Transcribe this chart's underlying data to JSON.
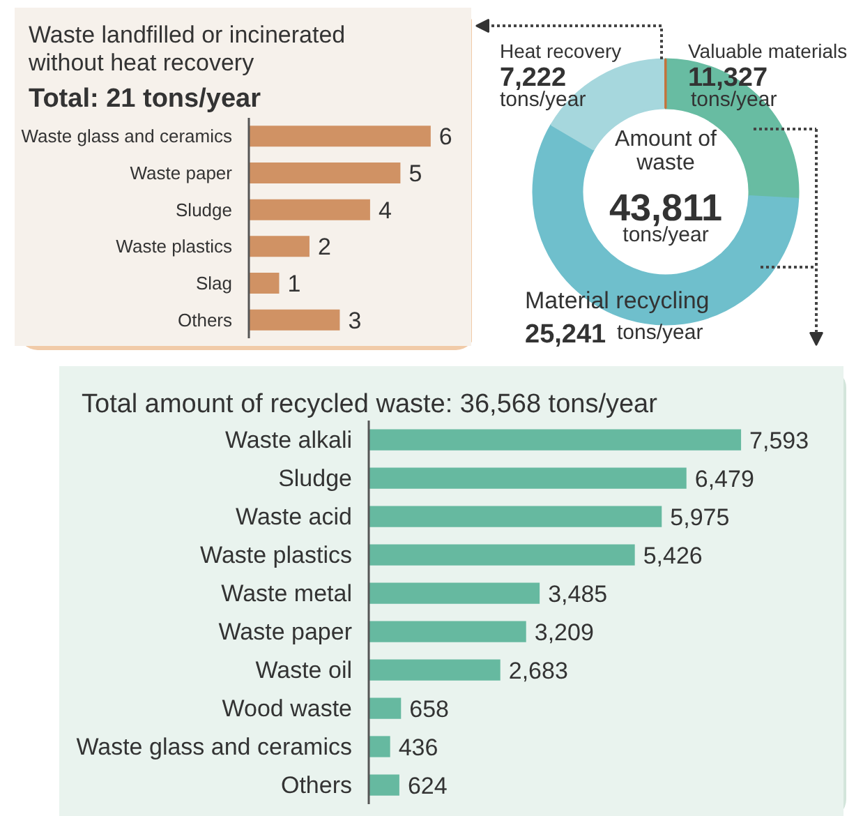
{
  "chart_data": [
    {
      "type": "bar",
      "orientation": "horizontal",
      "title": "Waste landfilled or incinerated without heat recovery",
      "subtitle": "Total: 21 tons/year",
      "categories": [
        "Waste glass and ceramics",
        "Waste paper",
        "Sludge",
        "Waste plastics",
        "Slag",
        "Others"
      ],
      "values": [
        6,
        5,
        4,
        2,
        1,
        3
      ],
      "color": "#d09264",
      "data_labels": true,
      "tick_labels": "y"
    },
    {
      "type": "donut",
      "categories": [
        "Valuable materials",
        "Material recycling",
        "Heat recovery",
        null
      ],
      "values": [
        11327,
        25241,
        7222,
        21
      ],
      "colors": [
        "#68bca2",
        "#6fbfcc",
        "#a6d7dd",
        "#c4733b"
      ],
      "value_labels": [
        "11,327",
        "25,241",
        "7,222",
        null
      ],
      "annotations": [
        "Amount of waste",
        "43,811",
        "tons/year",
        "tons/year",
        "tons/year",
        "tons/year"
      ]
    },
    {
      "type": "bar",
      "orientation": "horizontal",
      "title": "Total amount of recycled waste: 36,568 tons/year",
      "categories": [
        "Waste alkali",
        "Sludge",
        "Waste acid",
        "Waste plastics",
        "Waste metal",
        "Waste paper",
        "Waste oil",
        "Wood waste",
        "Waste glass and ceramics",
        "Others"
      ],
      "values": [
        7593,
        6479,
        5975,
        5426,
        3485,
        3209,
        2683,
        658,
        436,
        624
      ],
      "value_labels": [
        "7,593",
        "6,479",
        "5,975",
        "5,426",
        "3,485",
        "3,209",
        "2,683",
        "658",
        "436",
        "624"
      ],
      "color": "#66b9a0",
      "tick_labels": "y"
    }
  ]
}
